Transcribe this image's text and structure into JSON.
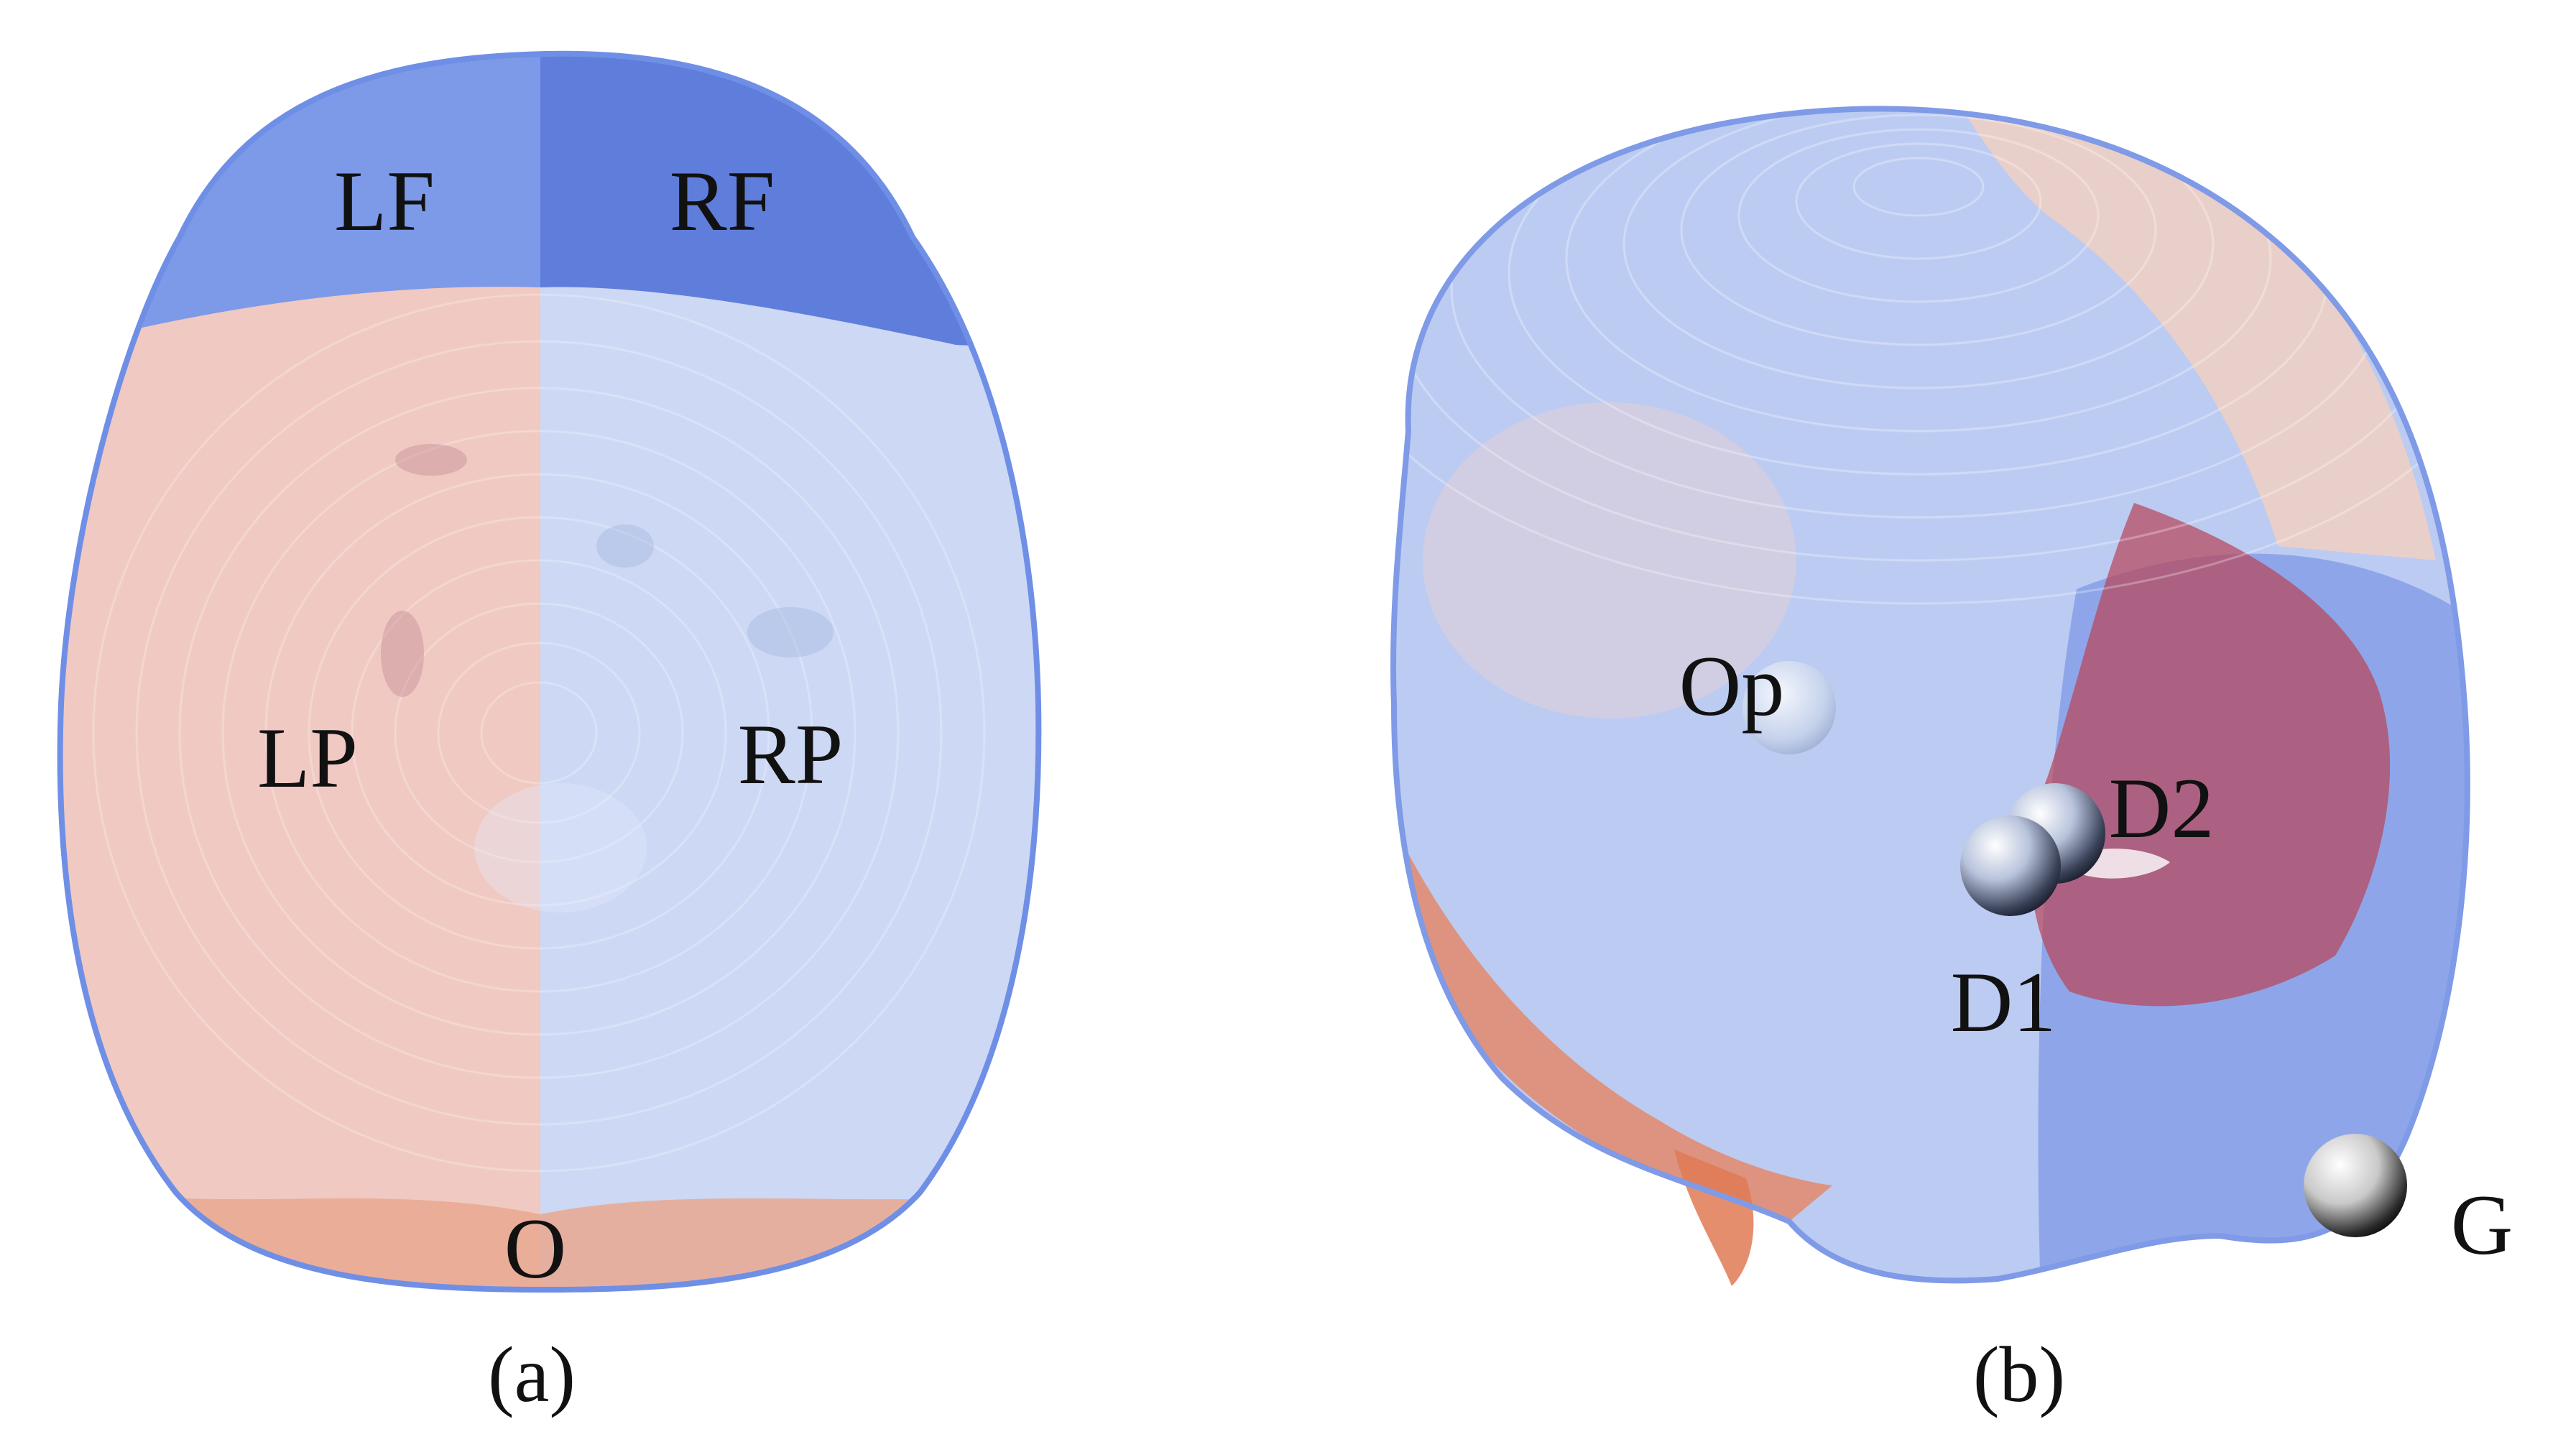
{
  "panel_a": {
    "caption": "(a)",
    "regions": {
      "left_frontal": "LF",
      "right_frontal": "RF",
      "left_parietal": "LP",
      "right_parietal": "RP",
      "occipital": "O"
    }
  },
  "panel_b": {
    "caption": "(b)",
    "landmarks": {
      "opisthocranion": "Op",
      "d2": "D2",
      "d1": "D1",
      "glabella": "G"
    }
  },
  "colors": {
    "frontal_blue": "#6f8fe6",
    "frontal_dark": "#5a78d8",
    "parietal_peach": "#ecc6bf",
    "parietal_pale_blue": "#c8d5f3",
    "occipital_orange": "#e88c6c",
    "deep_red": "#b9475a",
    "landmark_sphere": "#9fb0d4"
  }
}
